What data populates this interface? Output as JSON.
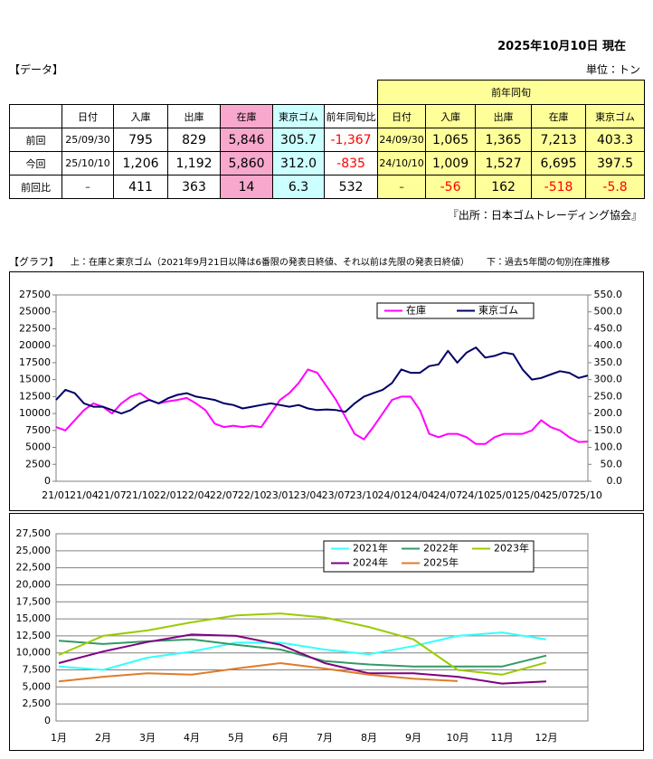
{
  "header": {
    "date": "2025年10月10日 現在",
    "data_label": "【データ】",
    "unit": "単位：トン",
    "source": "『出所：日本ゴムトレーディング協会』",
    "graph_label": "【グラフ】",
    "graph_note_top": "上：在庫と東京ゴム（2021年9月21日以降は6番限の発表日終値、それ以前は先限の発表日終値）",
    "graph_note_bottom": "下：過去5年間の旬別在庫推移"
  },
  "table": {
    "group_header": "前年同旬",
    "columns": [
      "日付",
      "入庫",
      "出庫",
      "在庫",
      "東京ゴム",
      "前年同旬比",
      "日付",
      "入庫",
      "出庫",
      "在庫",
      "東京ゴム"
    ],
    "rows": [
      [
        "前回",
        "25/09/30",
        "795",
        "829",
        "5,846",
        "305.7",
        "-1,367",
        "24/09/30",
        "1,065",
        "1,365",
        "7,213",
        "403.3"
      ],
      [
        "今回",
        "25/10/10",
        "1,206",
        "1,192",
        "5,860",
        "312.0",
        "-835",
        "24/10/10",
        "1,009",
        "1,527",
        "6,695",
        "397.5"
      ],
      [
        "前回比",
        "–",
        "411",
        "363",
        "14",
        "6.3",
        "532",
        "–",
        "-56",
        "162",
        "-518",
        "-5.8"
      ]
    ]
  },
  "chart_data": [
    {
      "type": "line",
      "grid": false,
      "legend": "upper right",
      "categories": [
        "21/01",
        null,
        null,
        "21/04",
        null,
        null,
        "21/07",
        null,
        null,
        "21/10",
        null,
        null,
        "22/01",
        null,
        null,
        "22/04",
        null,
        null,
        "22/07",
        null,
        null,
        "22/10",
        null,
        null,
        "23/01",
        null,
        null,
        "23/04",
        null,
        null,
        "23/07",
        null,
        null,
        "23/10",
        null,
        null,
        "24/01",
        null,
        null,
        "24/04",
        null,
        null,
        "24/07",
        null,
        null,
        "24/10",
        null,
        null,
        "25/01",
        null,
        null,
        "25/04",
        null,
        null,
        "25/07",
        null,
        null,
        "25/10"
      ],
      "ylim": [
        0,
        27500
      ],
      "yticks": [
        0,
        2500,
        5000,
        7500,
        10000,
        12500,
        15000,
        17500,
        20000,
        22500,
        25000,
        27500
      ],
      "y2lim": [
        0,
        550
      ],
      "y2ticks": [
        {
          "value": 0,
          "label": "0.0"
        },
        {
          "value": 50,
          "label": "50.0"
        },
        {
          "value": 100,
          "label": "100.0"
        },
        {
          "value": 150,
          "label": "150.0"
        },
        {
          "value": 200,
          "label": "200.0"
        },
        {
          "value": 250,
          "label": "250.0"
        },
        {
          "value": 300,
          "label": "300.0"
        },
        {
          "value": 350,
          "label": "350.0"
        },
        {
          "value": 400,
          "label": "400.0"
        },
        {
          "value": 450,
          "label": "450.0"
        },
        {
          "value": 500,
          "label": "500.0"
        },
        {
          "value": 550,
          "label": "550.0"
        }
      ],
      "series": [
        {
          "name": "在庫",
          "color": "#ff00ff",
          "values": [
            8000,
            7500,
            9000,
            10500,
            11500,
            11000,
            10000,
            11500,
            12500,
            13000,
            12000,
            11500,
            11800,
            12000,
            12300,
            11500,
            10500,
            8500,
            8000,
            8200,
            8000,
            8200,
            8000,
            10000,
            12000,
            13000,
            14500,
            16500,
            16000,
            14000,
            12000,
            9500,
            7000,
            6200,
            8000,
            10000,
            12000,
            12500,
            12500,
            10500,
            7000,
            6500,
            7000,
            7000,
            6500,
            5500,
            5500,
            6500,
            7000,
            7000,
            7000,
            7500,
            9000,
            8000,
            7500,
            6500,
            5800,
            5860
          ]
        },
        {
          "name": "東京ゴム",
          "color": "#000066",
          "axis": "y2",
          "values": [
            240,
            270,
            260,
            230,
            220,
            220,
            210,
            200,
            210,
            230,
            240,
            230,
            245,
            255,
            260,
            250,
            245,
            240,
            230,
            225,
            215,
            220,
            225,
            230,
            225,
            220,
            225,
            215,
            210,
            212,
            210,
            205,
            230,
            250,
            260,
            270,
            290,
            330,
            320,
            320,
            340,
            345,
            385,
            350,
            380,
            395,
            365,
            370,
            380,
            375,
            330,
            300,
            305,
            315,
            325,
            320,
            305,
            312
          ]
        }
      ]
    },
    {
      "type": "line",
      "grid": true,
      "legend": "upper right",
      "categories": [
        "1月",
        "2月",
        "3月",
        "4月",
        "5月",
        "6月",
        "7月",
        "8月",
        "9月",
        "10月",
        "11月",
        "12月"
      ],
      "ylim": [
        0,
        27500
      ],
      "yticks": [
        0,
        {
          "value": 2500,
          "label": "2,500"
        },
        {
          "value": 5000,
          "label": "5,000"
        },
        {
          "value": 7500,
          "label": "7,500"
        },
        {
          "value": 10000,
          "label": "10,000"
        },
        {
          "value": 12500,
          "label": "12,500"
        },
        {
          "value": 15000,
          "label": "15,000"
        },
        {
          "value": 17500,
          "label": "17,500"
        },
        {
          "value": 20000,
          "label": "20,000"
        },
        {
          "value": 22500,
          "label": "22,500"
        },
        {
          "value": 25000,
          "label": "25,000"
        },
        {
          "value": 27500,
          "label": "27,500"
        }
      ],
      "series": [
        {
          "name": "2021年",
          "color": "#33ffff",
          "values": [
            8000,
            7500,
            9300,
            10200,
            11500,
            11500,
            10500,
            9800,
            11000,
            12500,
            13000,
            12000
          ]
        },
        {
          "name": "2022年",
          "color": "#339966",
          "values": [
            11800,
            11300,
            11700,
            12000,
            11200,
            10500,
            8800,
            8300,
            8000,
            8000,
            8000,
            9600
          ]
        },
        {
          "name": "2023年",
          "color": "#99cc00",
          "values": [
            9700,
            12500,
            13300,
            14500,
            15500,
            15800,
            15200,
            13800,
            12000,
            7500,
            6800,
            8600
          ]
        },
        {
          "name": "2024年",
          "color": "#800080",
          "values": [
            8500,
            10200,
            11600,
            12700,
            12500,
            11200,
            8500,
            7000,
            7000,
            6500,
            5500,
            5800
          ]
        },
        {
          "name": "2025年",
          "color": "#e07b2a",
          "values": [
            5800,
            6500,
            7000,
            6800,
            7700,
            8500,
            7700,
            6800,
            6200,
            5860,
            null,
            null
          ]
        }
      ]
    }
  ]
}
